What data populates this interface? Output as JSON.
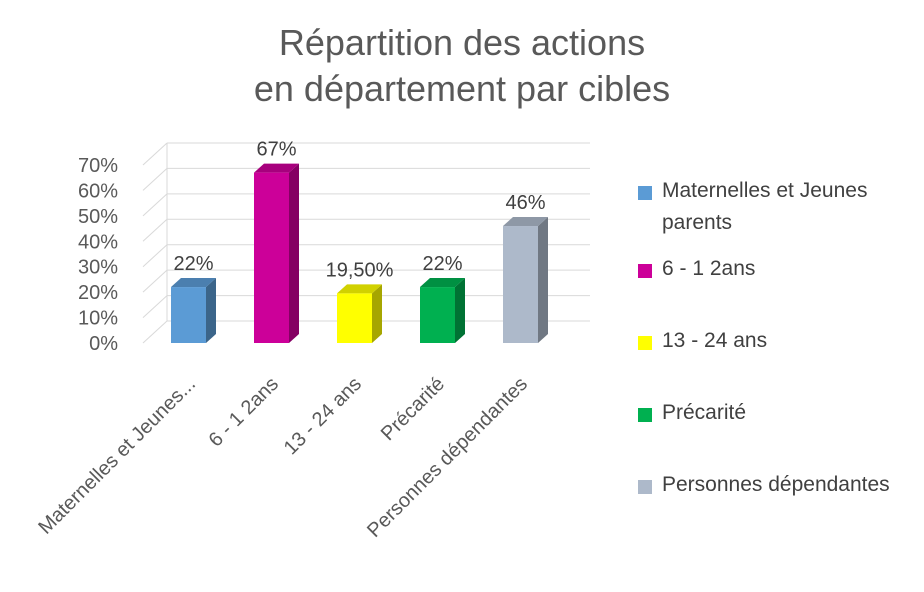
{
  "chart_data": {
    "type": "bar",
    "title_line1": "Répartition des actions",
    "title_line2": "en département par cibles",
    "categories": [
      "Maternelles et Jeunes parents",
      "6 - 1 2ans",
      "13 - 24 ans",
      "Précarité",
      "Personnes dépendantes"
    ],
    "category_axis_labels": [
      "Maternelles et Jeunes...",
      "6 - 1 2ans",
      "13 - 24 ans",
      "Précarité",
      "Personnes dépendantes"
    ],
    "values": [
      22,
      67,
      19.5,
      22,
      46
    ],
    "data_labels": [
      "22%",
      "67%",
      "19,50%",
      "22%",
      "46%"
    ],
    "colors": [
      "#5b9bd5",
      "#cc0099",
      "#ffff00",
      "#00b050",
      "#adb9ca"
    ],
    "ylim": [
      0,
      70
    ],
    "y_ticks": [
      "0%",
      "10%",
      "20%",
      "30%",
      "40%",
      "50%",
      "60%",
      "70%"
    ],
    "grid": true,
    "legend_position": "right",
    "legend": [
      "Maternelles et Jeunes parents",
      "6 - 1 2ans",
      "13 - 24 ans",
      "Précarité",
      "Personnes dépendantes"
    ]
  }
}
